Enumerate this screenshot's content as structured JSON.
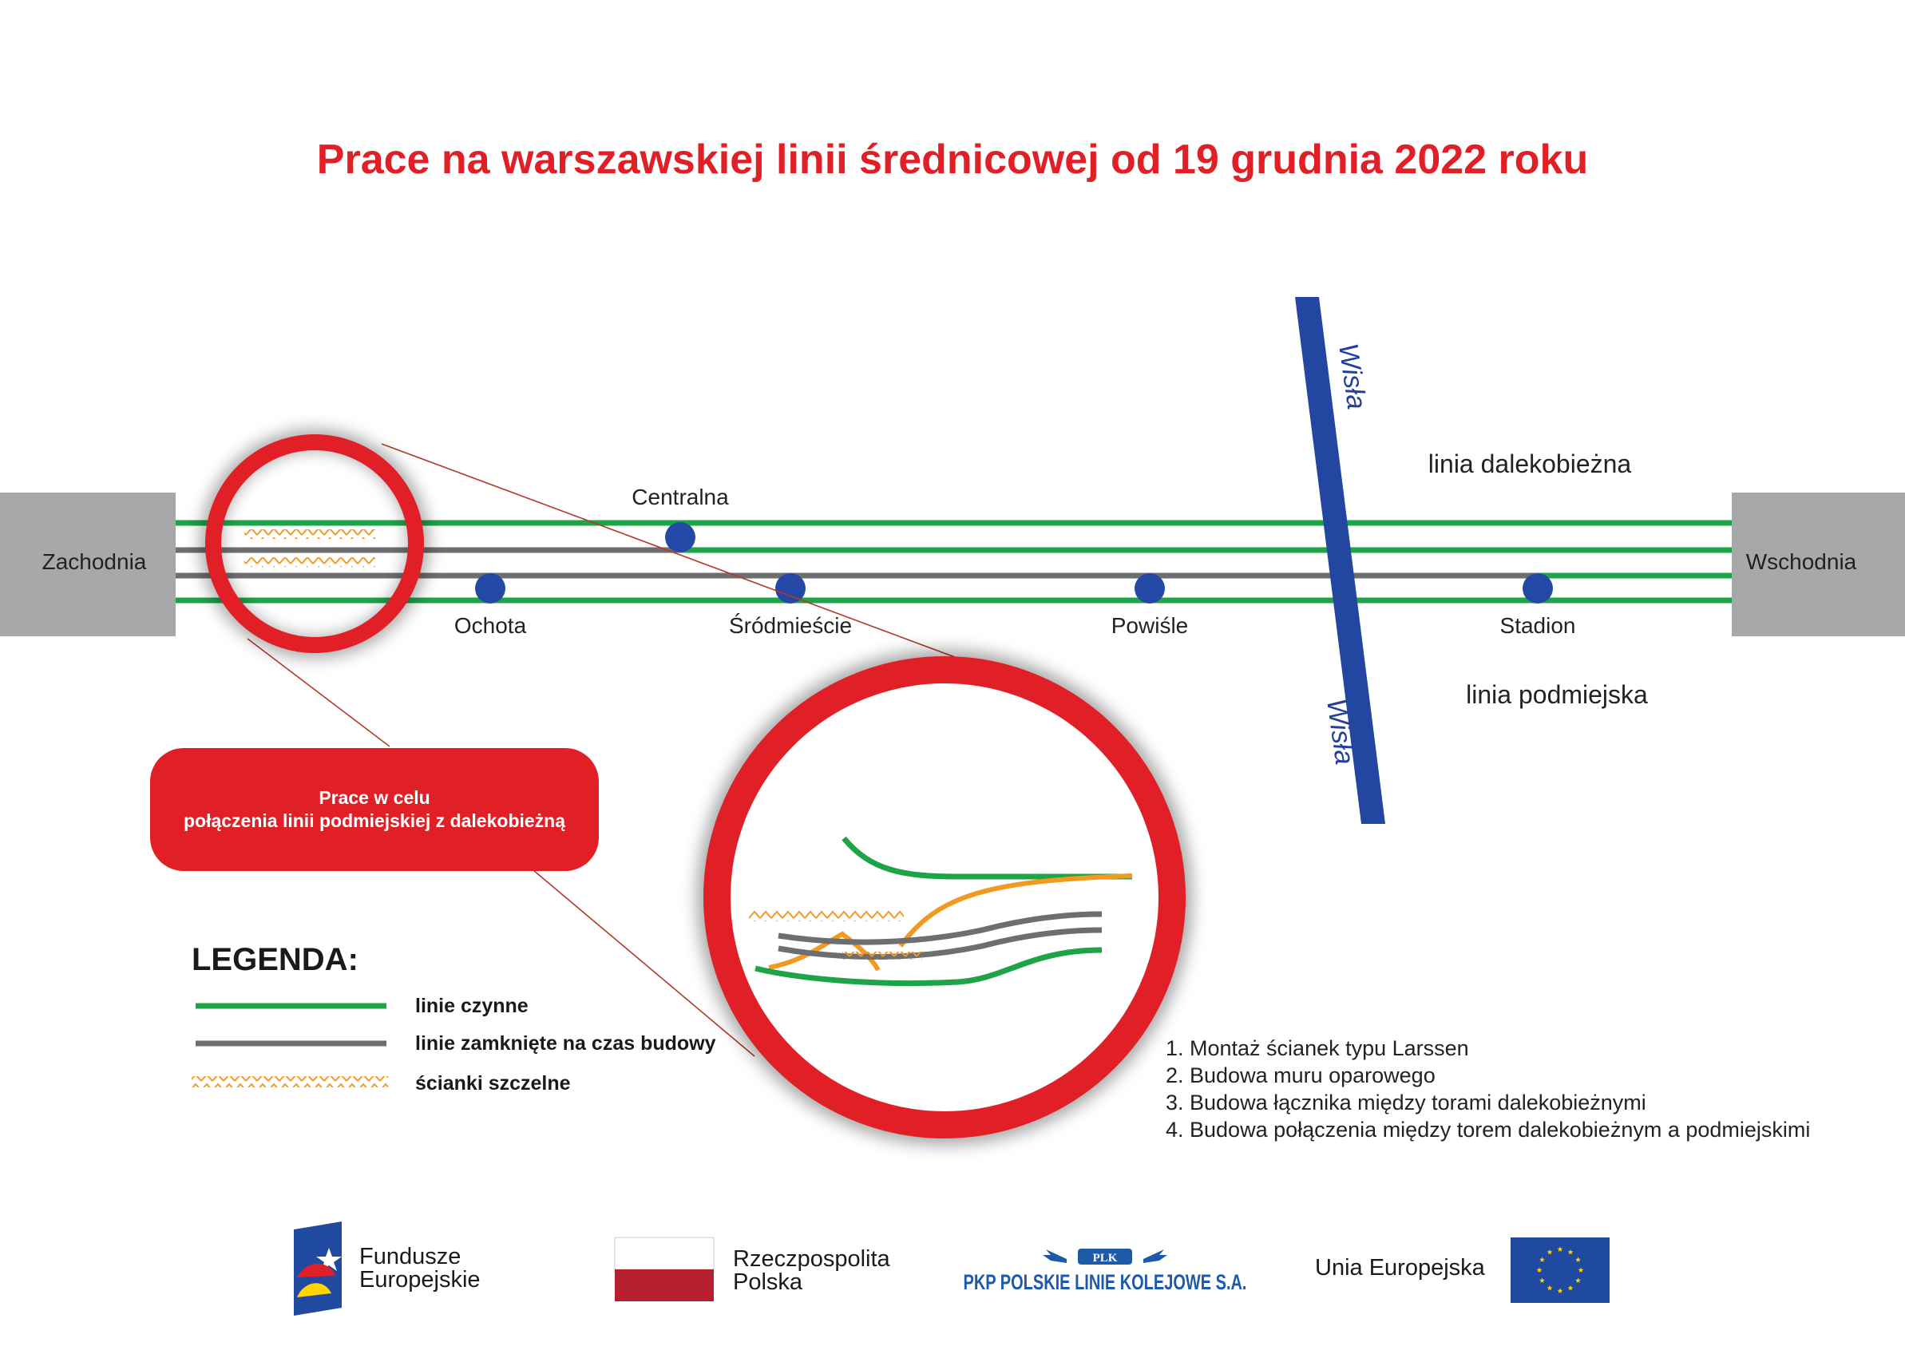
{
  "title": "Prace na warszawskiej linii średnicowej od 19 grudnia 2022 roku",
  "terminals": {
    "west": "Zachodnia",
    "east": "Wschodnia"
  },
  "stations": {
    "centralna": "Centralna",
    "ochota": "Ochota",
    "srodmiescie": "Śródmieście",
    "powisle": "Powiśle",
    "stadion": "Stadion"
  },
  "river": {
    "name_top": "Wisła",
    "name_bottom": "Wisła"
  },
  "line_labels": {
    "long_distance": "linia dalekobieżna",
    "suburban": "linia podmiejska"
  },
  "callout": {
    "line1": "Prace w celu",
    "line2": "połączenia linii podmiejskiej z dalekobieżną"
  },
  "legend": {
    "title": "LEGENDA:",
    "items": [
      {
        "label": "linie czynne",
        "color": "#1ea446"
      },
      {
        "label": "linie zamknięte na czas budowy",
        "color": "#6d6e70"
      },
      {
        "label": "ścianki szczelne",
        "color": "#f29a1f"
      }
    ]
  },
  "steps": [
    "1. Montaż ścianek typu Larssen",
    "2. Budowa muru oparowego",
    "3. Budowa łącznika między torami dalekobieżnymi",
    "4. Budowa połączenia między torem dalekobieżnym a podmiejskimi"
  ],
  "logos": {
    "fe_line1": "Fundusze",
    "fe_line2": "Europejskie",
    "rp_line1": "Rzeczpospolita",
    "rp_line2": "Polska",
    "plk_text": "PKP POLSKIE LINIE KOLEJOWE S.A.",
    "plk_emblem": "PLK",
    "eu_text": "Unia Europejska"
  },
  "colors": {
    "red": "#e01f26",
    "green": "#1ea446",
    "gray": "#6d6e70",
    "orange": "#f29a1f",
    "river_blue": "#2347a0",
    "station_blue": "#2348a6",
    "terminal_gray": "#a7a8aa",
    "eu_blue": "#1f4aa0",
    "eu_star": "#ffd400",
    "poland_red": "#b51f2e"
  },
  "icons": {
    "fe": "european-funds-logo-icon",
    "rp": "polish-flag-icon",
    "plk": "plk-winged-emblem-icon",
    "eu": "eu-flag-icon"
  }
}
